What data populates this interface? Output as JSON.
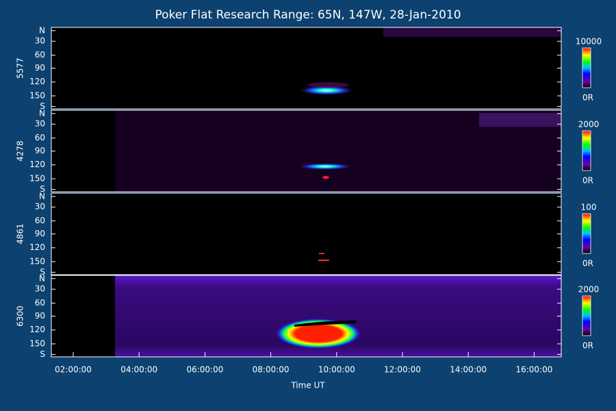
{
  "title": "Poker Flat Research Range: 65N, 147W, 28-Jan-2010",
  "x_axis": {
    "label": "Time UT",
    "ticks": [
      "02:00:00",
      "04:00:00",
      "06:00:00",
      "08:00:00",
      "10:00:00",
      "12:00:00",
      "14:00:00",
      "16:00:00"
    ]
  },
  "panels": [
    {
      "label": "5577",
      "yticks": [
        "N",
        "30",
        "60",
        "90",
        "120",
        "150",
        "S"
      ],
      "colorbar": {
        "max": "10000",
        "min": "0R"
      }
    },
    {
      "label": "4278",
      "yticks": [
        "N",
        "30",
        "60",
        "90",
        "120",
        "150",
        "S"
      ],
      "colorbar": {
        "max": "2000",
        "min": "0R"
      }
    },
    {
      "label": "4861",
      "yticks": [
        "N",
        "30",
        "60",
        "90",
        "120",
        "150",
        "S"
      ],
      "colorbar": {
        "max": "100",
        "min": "0R"
      }
    },
    {
      "label": "6300",
      "yticks": [
        "N",
        "30",
        "60",
        "90",
        "120",
        "150",
        "S"
      ],
      "colorbar": {
        "max": "2000",
        "min": "0R"
      }
    }
  ]
}
